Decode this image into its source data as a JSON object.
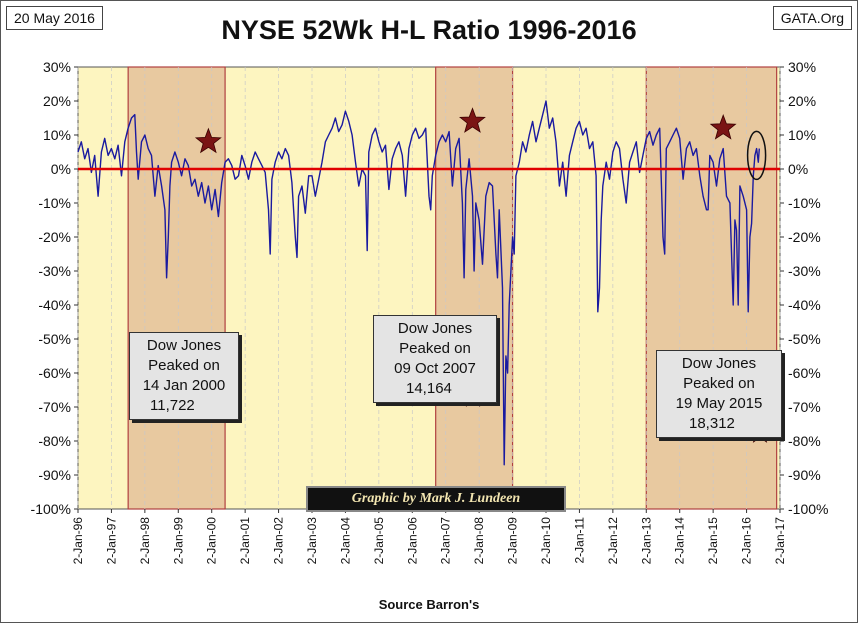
{
  "header": {
    "date": "20 May 2016",
    "source_site": "GATA.Org",
    "title": "NYSE 52Wk H-L Ratio 1996-2016"
  },
  "footer": {
    "xlabel": "Source Barron's",
    "credit": "Graphic by Mark J. Lundeen"
  },
  "colors": {
    "plot_bg": "#fdf5c0",
    "shaded_bg": "#e8c9a0",
    "shaded_border": "#b04040",
    "series": "#1a1aa0",
    "zero_line": "#e00000",
    "star": "#7a1414",
    "annotation_bg": "#e4e4e4"
  },
  "annotations": [
    {
      "lines": [
        "Dow Jones",
        "Peaked on",
        "14 Jan 2000",
        "11,722"
      ]
    },
    {
      "lines": [
        "Dow Jones",
        "Peaked on",
        "09 Oct 2007",
        "14,164"
      ]
    },
    {
      "lines": [
        "Dow Jones",
        "Peaked on",
        "19 May 2015",
        "18,312"
      ]
    }
  ],
  "chart_data": {
    "type": "line",
    "title": "NYSE 52Wk H-L Ratio 1996-2016",
    "xlabel": "Source Barron's",
    "ylabel": "",
    "ylim": [
      -100,
      30
    ],
    "xlim": [
      1996.0,
      2017.0
    ],
    "y_ticks": [
      "30%",
      "20%",
      "10%",
      "0%",
      "-10%",
      "-20%",
      "-30%",
      "-40%",
      "-50%",
      "-60%",
      "-70%",
      "-80%",
      "-90%",
      "-100%"
    ],
    "x_ticks": [
      "2-Jan-96",
      "2-Jan-97",
      "2-Jan-98",
      "2-Jan-99",
      "2-Jan-00",
      "2-Jan-01",
      "2-Jan-02",
      "2-Jan-03",
      "2-Jan-04",
      "2-Jan-05",
      "2-Jan-06",
      "2-Jan-07",
      "2-Jan-08",
      "2-Jan-09",
      "2-Jan-10",
      "2-Jan-11",
      "2-Jan-12",
      "2-Jan-13",
      "2-Jan-14",
      "2-Jan-15",
      "2-Jan-16",
      "2-Jan-17"
    ],
    "shaded_periods": [
      [
        1997.5,
        2000.4
      ],
      [
        2006.7,
        2009.0
      ],
      [
        2013.0,
        2016.9
      ]
    ],
    "peak_stars": [
      {
        "x": 1999.9,
        "y": 8
      },
      {
        "x": 2007.8,
        "y": 14
      },
      {
        "x": 2015.3,
        "y": 12
      }
    ],
    "zero_line": 0,
    "series": [
      {
        "name": "NYSE 52Wk H-L Ratio",
        "points": [
          [
            1996.0,
            5
          ],
          [
            1996.1,
            8
          ],
          [
            1996.2,
            3
          ],
          [
            1996.3,
            6
          ],
          [
            1996.4,
            -1
          ],
          [
            1996.5,
            4
          ],
          [
            1996.6,
            -8
          ],
          [
            1996.7,
            5
          ],
          [
            1996.8,
            9
          ],
          [
            1996.9,
            4
          ],
          [
            1997.0,
            6
          ],
          [
            1997.1,
            3
          ],
          [
            1997.2,
            7
          ],
          [
            1997.3,
            -2
          ],
          [
            1997.4,
            8
          ],
          [
            1997.5,
            12
          ],
          [
            1997.6,
            15
          ],
          [
            1997.7,
            16
          ],
          [
            1997.75,
            5
          ],
          [
            1997.8,
            -3
          ],
          [
            1997.9,
            8
          ],
          [
            1998.0,
            10
          ],
          [
            1998.1,
            6
          ],
          [
            1998.2,
            4
          ],
          [
            1998.3,
            -8
          ],
          [
            1998.4,
            1
          ],
          [
            1998.5,
            -5
          ],
          [
            1998.6,
            -12
          ],
          [
            1998.65,
            -32
          ],
          [
            1998.7,
            -20
          ],
          [
            1998.75,
            -5
          ],
          [
            1998.8,
            2
          ],
          [
            1998.9,
            5
          ],
          [
            1999.0,
            2
          ],
          [
            1999.1,
            -2
          ],
          [
            1999.2,
            3
          ],
          [
            1999.3,
            1
          ],
          [
            1999.4,
            -5
          ],
          [
            1999.5,
            -3
          ],
          [
            1999.6,
            -8
          ],
          [
            1999.7,
            -4
          ],
          [
            1999.8,
            -10
          ],
          [
            1999.9,
            -5
          ],
          [
            2000.0,
            -12
          ],
          [
            2000.1,
            -6
          ],
          [
            2000.2,
            -14
          ],
          [
            2000.3,
            -4
          ],
          [
            2000.4,
            2
          ],
          [
            2000.5,
            3
          ],
          [
            2000.6,
            1
          ],
          [
            2000.7,
            -3
          ],
          [
            2000.8,
            -2
          ],
          [
            2000.9,
            4
          ],
          [
            2001.0,
            1
          ],
          [
            2001.1,
            -3
          ],
          [
            2001.2,
            2
          ],
          [
            2001.3,
            5
          ],
          [
            2001.4,
            3
          ],
          [
            2001.5,
            1
          ],
          [
            2001.6,
            -1
          ],
          [
            2001.7,
            -12
          ],
          [
            2001.75,
            -25
          ],
          [
            2001.8,
            -3
          ],
          [
            2001.9,
            2
          ],
          [
            2002.0,
            5
          ],
          [
            2002.1,
            3
          ],
          [
            2002.2,
            6
          ],
          [
            2002.3,
            4
          ],
          [
            2002.4,
            -4
          ],
          [
            2002.5,
            -20
          ],
          [
            2002.55,
            -26
          ],
          [
            2002.6,
            -8
          ],
          [
            2002.7,
            -5
          ],
          [
            2002.8,
            -13
          ],
          [
            2002.9,
            -2
          ],
          [
            2003.0,
            -2
          ],
          [
            2003.1,
            -8
          ],
          [
            2003.2,
            -3
          ],
          [
            2003.3,
            2
          ],
          [
            2003.4,
            8
          ],
          [
            2003.5,
            10
          ],
          [
            2003.6,
            12
          ],
          [
            2003.7,
            15
          ],
          [
            2003.8,
            11
          ],
          [
            2003.9,
            13
          ],
          [
            2004.0,
            17
          ],
          [
            2004.1,
            14
          ],
          [
            2004.2,
            10
          ],
          [
            2004.3,
            2
          ],
          [
            2004.4,
            -5
          ],
          [
            2004.5,
            0
          ],
          [
            2004.6,
            -2
          ],
          [
            2004.65,
            -24
          ],
          [
            2004.7,
            5
          ],
          [
            2004.8,
            10
          ],
          [
            2004.9,
            12
          ],
          [
            2005.0,
            8
          ],
          [
            2005.1,
            5
          ],
          [
            2005.2,
            7
          ],
          [
            2005.3,
            -6
          ],
          [
            2005.4,
            3
          ],
          [
            2005.5,
            6
          ],
          [
            2005.6,
            8
          ],
          [
            2005.7,
            4
          ],
          [
            2005.8,
            -8
          ],
          [
            2005.9,
            6
          ],
          [
            2006.0,
            10
          ],
          [
            2006.1,
            12
          ],
          [
            2006.2,
            9
          ],
          [
            2006.3,
            10
          ],
          [
            2006.4,
            12
          ],
          [
            2006.5,
            -8
          ],
          [
            2006.55,
            -12
          ],
          [
            2006.6,
            -2
          ],
          [
            2006.7,
            4
          ],
          [
            2006.8,
            8
          ],
          [
            2006.9,
            10
          ],
          [
            2007.0,
            8
          ],
          [
            2007.1,
            11
          ],
          [
            2007.2,
            -5
          ],
          [
            2007.3,
            6
          ],
          [
            2007.4,
            9
          ],
          [
            2007.5,
            -10
          ],
          [
            2007.55,
            -32
          ],
          [
            2007.6,
            -6
          ],
          [
            2007.7,
            3
          ],
          [
            2007.8,
            -8
          ],
          [
            2007.85,
            -30
          ],
          [
            2007.9,
            -10
          ],
          [
            2008.0,
            -15
          ],
          [
            2008.1,
            -28
          ],
          [
            2008.2,
            -8
          ],
          [
            2008.3,
            -4
          ],
          [
            2008.4,
            -5
          ],
          [
            2008.5,
            -25
          ],
          [
            2008.55,
            -32
          ],
          [
            2008.6,
            -12
          ],
          [
            2008.7,
            -35
          ],
          [
            2008.75,
            -87
          ],
          [
            2008.8,
            -55
          ],
          [
            2008.85,
            -60
          ],
          [
            2008.9,
            -40
          ],
          [
            2009.0,
            -20
          ],
          [
            2009.05,
            -25
          ],
          [
            2009.1,
            -2
          ],
          [
            2009.2,
            2
          ],
          [
            2009.3,
            8
          ],
          [
            2009.4,
            5
          ],
          [
            2009.5,
            10
          ],
          [
            2009.6,
            14
          ],
          [
            2009.7,
            8
          ],
          [
            2009.8,
            12
          ],
          [
            2009.9,
            16
          ],
          [
            2010.0,
            20
          ],
          [
            2010.1,
            12
          ],
          [
            2010.2,
            15
          ],
          [
            2010.3,
            8
          ],
          [
            2010.4,
            -5
          ],
          [
            2010.5,
            2
          ],
          [
            2010.6,
            -8
          ],
          [
            2010.7,
            4
          ],
          [
            2010.8,
            8
          ],
          [
            2010.9,
            12
          ],
          [
            2011.0,
            14
          ],
          [
            2011.1,
            10
          ],
          [
            2011.2,
            12
          ],
          [
            2011.3,
            6
          ],
          [
            2011.4,
            8
          ],
          [
            2011.5,
            -2
          ],
          [
            2011.55,
            -42
          ],
          [
            2011.6,
            -35
          ],
          [
            2011.65,
            -15
          ],
          [
            2011.7,
            -5
          ],
          [
            2011.8,
            2
          ],
          [
            2011.9,
            -3
          ],
          [
            2012.0,
            5
          ],
          [
            2012.1,
            8
          ],
          [
            2012.2,
            6
          ],
          [
            2012.3,
            -3
          ],
          [
            2012.4,
            -10
          ],
          [
            2012.5,
            2
          ],
          [
            2012.6,
            5
          ],
          [
            2012.7,
            8
          ],
          [
            2012.8,
            -1
          ],
          [
            2012.9,
            4
          ],
          [
            2013.0,
            9
          ],
          [
            2013.1,
            11
          ],
          [
            2013.2,
            7
          ],
          [
            2013.3,
            10
          ],
          [
            2013.4,
            12
          ],
          [
            2013.5,
            -20
          ],
          [
            2013.55,
            -25
          ],
          [
            2013.6,
            6
          ],
          [
            2013.7,
            8
          ],
          [
            2013.8,
            10
          ],
          [
            2013.9,
            12
          ],
          [
            2014.0,
            9
          ],
          [
            2014.1,
            -3
          ],
          [
            2014.2,
            6
          ],
          [
            2014.3,
            8
          ],
          [
            2014.4,
            4
          ],
          [
            2014.5,
            6
          ],
          [
            2014.6,
            -2
          ],
          [
            2014.7,
            -8
          ],
          [
            2014.8,
            -12
          ],
          [
            2014.85,
            -12
          ],
          [
            2014.9,
            4
          ],
          [
            2015.0,
            2
          ],
          [
            2015.1,
            -5
          ],
          [
            2015.2,
            3
          ],
          [
            2015.3,
            6
          ],
          [
            2015.4,
            -8
          ],
          [
            2015.5,
            -10
          ],
          [
            2015.6,
            -40
          ],
          [
            2015.65,
            -15
          ],
          [
            2015.7,
            -18
          ],
          [
            2015.75,
            -40
          ],
          [
            2015.8,
            -5
          ],
          [
            2015.9,
            -8
          ],
          [
            2016.0,
            -12
          ],
          [
            2016.05,
            -42
          ],
          [
            2016.1,
            -20
          ],
          [
            2016.15,
            -16
          ],
          [
            2016.2,
            -2
          ],
          [
            2016.25,
            4
          ],
          [
            2016.3,
            6
          ],
          [
            2016.35,
            2
          ],
          [
            2016.38,
            6
          ]
        ]
      }
    ]
  }
}
